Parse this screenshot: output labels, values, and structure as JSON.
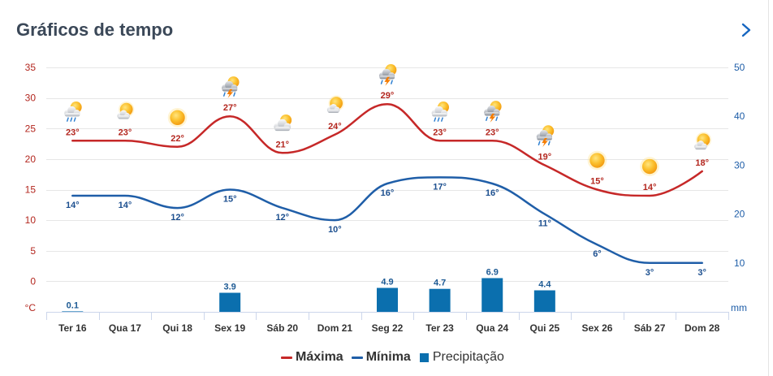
{
  "header": {
    "title": "Gráficos de tempo",
    "next_icon": "chevron-right-icon"
  },
  "colors": {
    "title": "#3b4858",
    "accent": "#1565c0",
    "max_line": "#c62828",
    "max_label": "#b3261e",
    "min_line": "#1f5ea8",
    "min_label": "#1c4f8f",
    "precip_bar": "#0b6fae",
    "precip_label": "#1d5a94",
    "grid": "#e6e6e6",
    "axis_line": "#ccd6eb",
    "axis_text": "#333333",
    "legend_text": "#333333",
    "card_edge": "#e4e4e4"
  },
  "chart_data": {
    "type": "line",
    "categories": [
      "Ter 16",
      "Qua 17",
      "Qui 18",
      "Sex 19",
      "Sáb 20",
      "Dom 21",
      "Seg 22",
      "Ter 23",
      "Qua 24",
      "Qui 25",
      "Sex 26",
      "Sáb 27",
      "Dom 28"
    ],
    "series": [
      {
        "name": "Máxima",
        "type": "spline",
        "axis": "left",
        "value_suffix": "°",
        "values": [
          23,
          23,
          22,
          27,
          21,
          24,
          29,
          23,
          23,
          19,
          15,
          14,
          18
        ]
      },
      {
        "name": "Mínima",
        "type": "spline",
        "axis": "left",
        "value_suffix": "°",
        "values": [
          14,
          14,
          12,
          15,
          12,
          10,
          16,
          17,
          16,
          11,
          6,
          3,
          3
        ]
      },
      {
        "name": "Precipitação",
        "type": "bar",
        "axis": "right",
        "values": [
          0.1,
          null,
          null,
          3.9,
          null,
          null,
          4.9,
          4.7,
          6.9,
          4.4,
          null,
          null,
          null
        ]
      }
    ],
    "weather_icons": [
      "sun-cloud-rain-icon",
      "partly-cloudy-icon",
      "sun-icon",
      "thunderstorm-icon",
      "mostly-cloudy-icon",
      "partly-cloudy-icon",
      "thunderstorm-icon",
      "sun-cloud-rain-icon",
      "thunderstorm-icon",
      "thunderstorm-icon",
      "sun-icon",
      "sun-icon",
      "partly-cloudy-icon"
    ],
    "y_left": {
      "unit_label": "°C",
      "ticks": [
        35,
        30,
        25,
        20,
        15,
        10,
        5,
        0
      ],
      "range": [
        -5,
        35
      ]
    },
    "y_right": {
      "unit_label": "mm",
      "ticks": [
        50,
        40,
        30,
        20,
        10
      ],
      "range": [
        0,
        50
      ]
    },
    "grid": true,
    "legend": "bottom-center"
  }
}
